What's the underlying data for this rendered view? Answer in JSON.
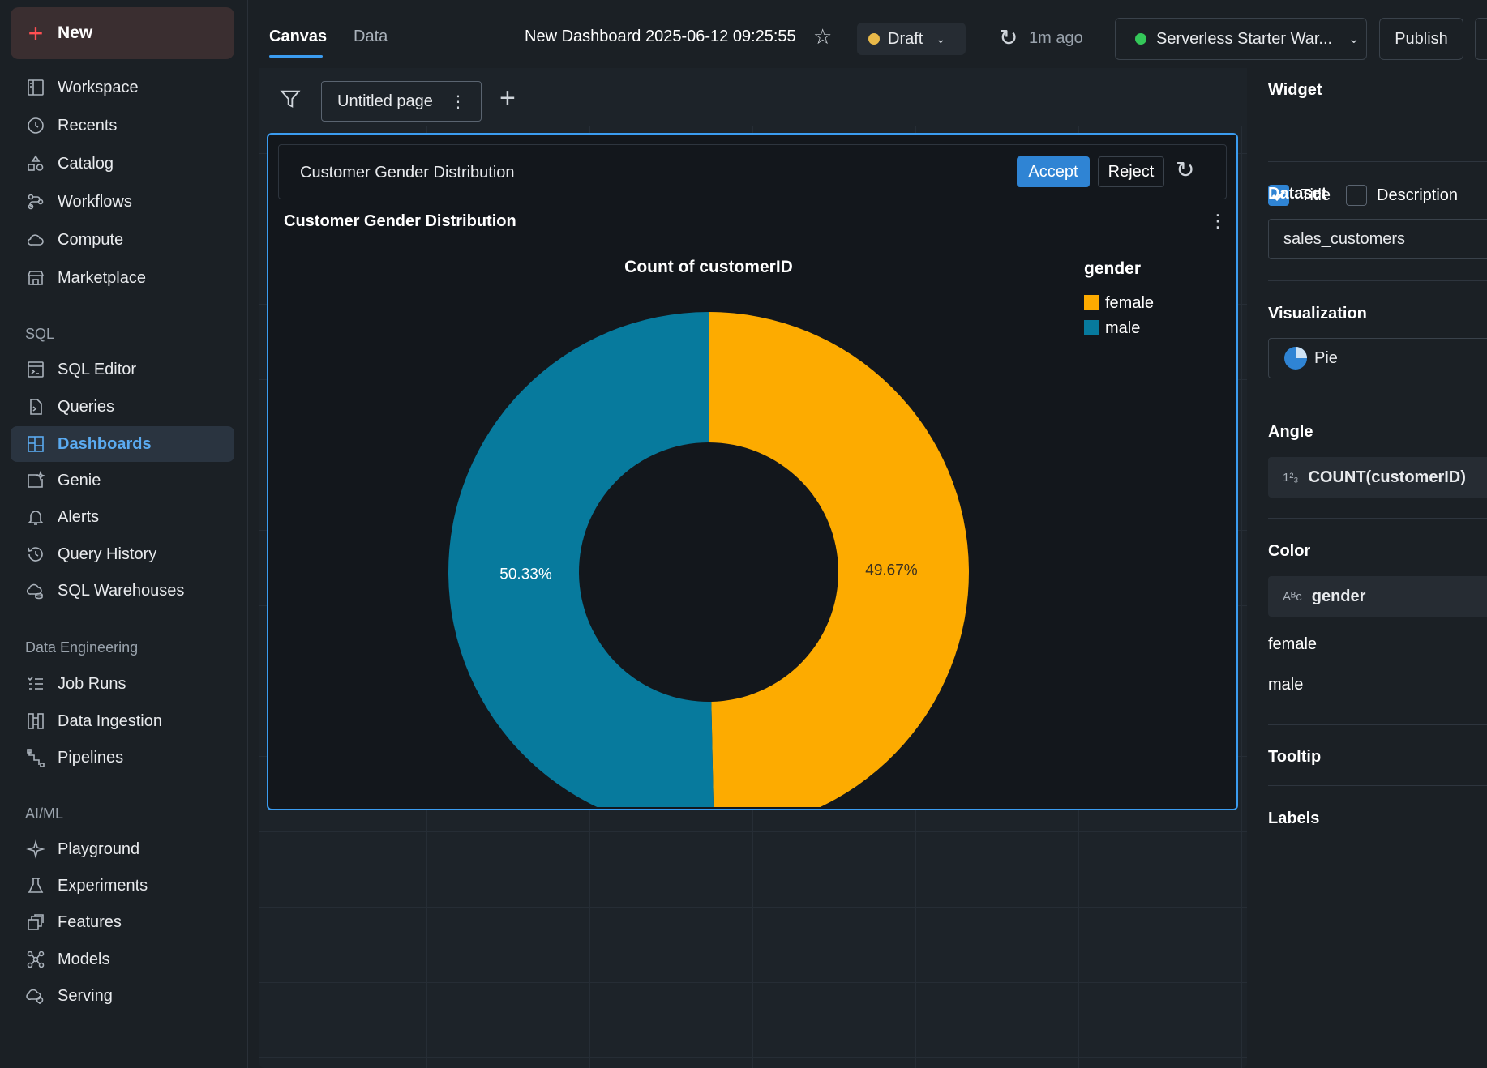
{
  "sidebar": {
    "new_label": "New",
    "items": [
      {
        "label": "Workspace",
        "icon": "workspace-icon"
      },
      {
        "label": "Recents",
        "icon": "clock-icon"
      },
      {
        "label": "Catalog",
        "icon": "catalog-icon"
      },
      {
        "label": "Workflows",
        "icon": "workflows-icon"
      },
      {
        "label": "Compute",
        "icon": "cloud-icon"
      },
      {
        "label": "Marketplace",
        "icon": "store-icon"
      }
    ],
    "sql_label": "SQL",
    "sql_items": [
      {
        "label": "SQL Editor",
        "icon": "sql-editor-icon"
      },
      {
        "label": "Queries",
        "icon": "queries-icon"
      },
      {
        "label": "Dashboards",
        "icon": "dashboards-icon",
        "active": true
      },
      {
        "label": "Genie",
        "icon": "genie-icon"
      },
      {
        "label": "Alerts",
        "icon": "bell-icon"
      },
      {
        "label": "Query History",
        "icon": "history-icon"
      },
      {
        "label": "SQL Warehouses",
        "icon": "warehouse-icon"
      }
    ],
    "de_label": "Data Engineering",
    "de_items": [
      {
        "label": "Job Runs",
        "icon": "job-runs-icon"
      },
      {
        "label": "Data Ingestion",
        "icon": "ingestion-icon"
      },
      {
        "label": "Pipelines",
        "icon": "pipelines-icon"
      }
    ],
    "ml_label": "AI/ML",
    "ml_items": [
      {
        "label": "Playground",
        "icon": "sparkle-icon"
      },
      {
        "label": "Experiments",
        "icon": "flask-icon"
      },
      {
        "label": "Features",
        "icon": "features-icon"
      },
      {
        "label": "Models",
        "icon": "models-icon"
      },
      {
        "label": "Serving",
        "icon": "serving-icon"
      }
    ]
  },
  "topbar": {
    "tabs": [
      "Canvas",
      "Data"
    ],
    "dashboard_title": "New Dashboard 2025-06-12 09:25:55",
    "status": "Draft",
    "last_refresh": "1m ago",
    "warehouse": "Serverless Starter War...",
    "publish": "Publish"
  },
  "canvas": {
    "page_name": "Untitled page"
  },
  "widget": {
    "prompt": "Customer Gender Distribution",
    "accept": "Accept",
    "reject": "Reject",
    "title": "Customer Gender Distribution"
  },
  "chart_data": {
    "type": "pie",
    "subtitle": "Count of customerID",
    "legend_title": "gender",
    "legend_position": "top-right",
    "donut": true,
    "slices": [
      {
        "label": "female",
        "value": 49.67,
        "display": "49.67%",
        "color": "#fdab00"
      },
      {
        "label": "male",
        "value": 50.33,
        "display": "50.33%",
        "color": "#077a9d"
      }
    ]
  },
  "panel": {
    "widget_label": "Widget",
    "title_chk": "Title",
    "title_checked": true,
    "desc_chk": "Description",
    "desc_checked": false,
    "dataset_label": "Dataset",
    "dataset": "sales_customers",
    "viz_label": "Visualization",
    "viz": "Pie",
    "angle_label": "Angle",
    "angle": "COUNT(customerID)",
    "color_label": "Color",
    "color_field": "gender",
    "color_values": [
      "female",
      "male"
    ],
    "tooltip_label": "Tooltip",
    "labels_label": "Labels"
  }
}
